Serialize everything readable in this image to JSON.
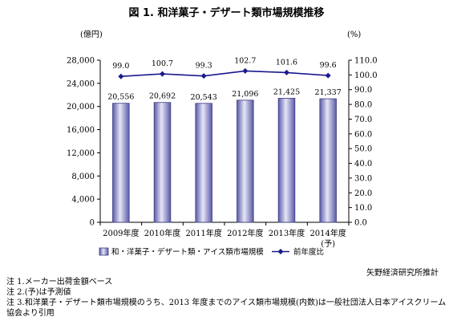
{
  "figure_title": "図 1. 和洋菓子・デザート類市場規模推移",
  "chart_data": {
    "type": "bar",
    "categories": [
      "2009年度",
      "2010年度",
      "2011年度",
      "2012年度",
      "2013年度",
      "2014年度"
    ],
    "category_sublabels": [
      "",
      "",
      "",
      "",
      "",
      "(予)"
    ],
    "series": [
      {
        "name": "和・洋菓子・デザート類・アイス類市場規模",
        "kind": "bar",
        "axis": "left",
        "values": [
          20556,
          20692,
          20543,
          21096,
          21425,
          21337
        ],
        "labels": [
          "20,556",
          "20,692",
          "20,543",
          "21,096",
          "21,425",
          "21,337"
        ]
      },
      {
        "name": "前年度比",
        "kind": "line",
        "axis": "right",
        "values": [
          99.0,
          100.7,
          99.3,
          102.7,
          101.6,
          99.6
        ],
        "labels": [
          "99.0",
          "100.7",
          "99.3",
          "102.7",
          "101.6",
          "99.6"
        ]
      }
    ],
    "y_left": {
      "unit": "(億円)",
      "ylim": [
        0,
        28000
      ],
      "ticks": [
        "0",
        "4,000",
        "8,000",
        "12,000",
        "16,000",
        "20,000",
        "24,000",
        "28,000"
      ]
    },
    "y_right": {
      "unit": "(%)",
      "ylim": [
        0,
        110
      ],
      "ticks": [
        "0.0",
        "10.0",
        "20.0",
        "30.0",
        "40.0",
        "50.0",
        "60.0",
        "70.0",
        "80.0",
        "90.0",
        "100.0",
        "110.0"
      ]
    },
    "legend_position": "bottom",
    "colors": {
      "bar_dark": "#5a5aa8",
      "bar_light": "#e6e6f6",
      "line": "#1a1a8c"
    }
  },
  "source": "矢野経済研究所推計",
  "notes": [
    "注 1.メーカー出荷金額ベース",
    "注 2.(予)は予測値",
    "注 3.和洋菓子・デザート類市場規模のうち、2013 年度までのアイス類市場規模(内数)は一般社団法人日本アイスクリーム",
    "協会より引用"
  ]
}
